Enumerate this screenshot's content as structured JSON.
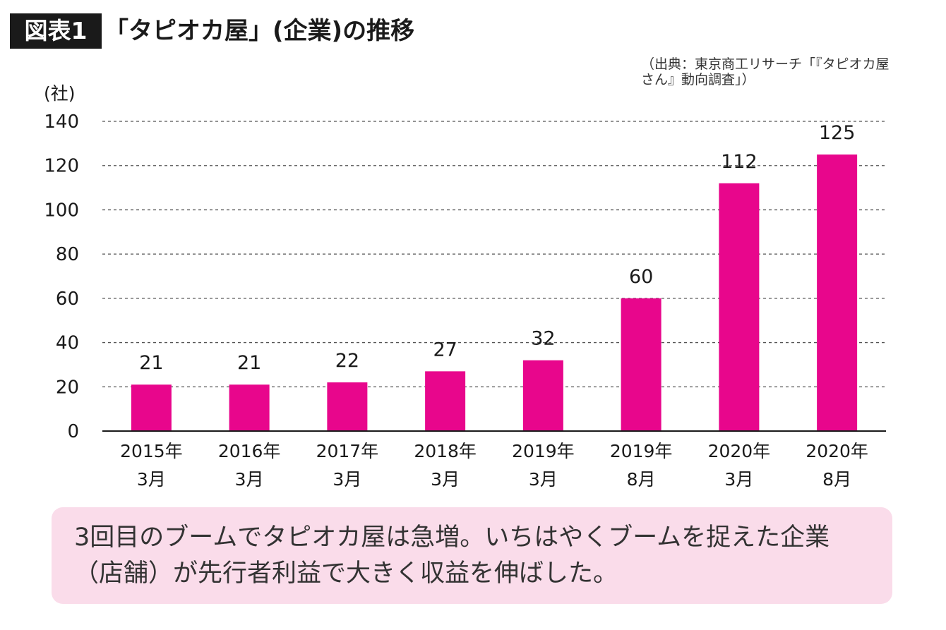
{
  "header": {
    "badge": "図表1",
    "title": "「タピオカ屋」(企業)の推移"
  },
  "source": "（出典：東京商工リサーチ「『タピオカ屋さん』動向調査」）",
  "colors": {
    "bar": "#e8068c",
    "note_bg": "#fadcea",
    "grid": "#555555"
  },
  "note": "3回目のブームでタピオカ屋は急増。いちはやくブームを捉えた企業（店舗）が先行者利益で大きく収益を伸ばした。",
  "chart_data": {
    "type": "bar",
    "title": "「タピオカ屋」(企業)の推移",
    "ylabel": "(社)",
    "xlabel": "",
    "ylim": [
      0,
      140
    ],
    "yticks": [
      0,
      20,
      40,
      60,
      80,
      100,
      120,
      140
    ],
    "grid": true,
    "categories": [
      [
        "2015年",
        "3月"
      ],
      [
        "2016年",
        "3月"
      ],
      [
        "2017年",
        "3月"
      ],
      [
        "2018年",
        "3月"
      ],
      [
        "2019年",
        "3月"
      ],
      [
        "2019年",
        "8月"
      ],
      [
        "2020年",
        "3月"
      ],
      [
        "2020年",
        "8月"
      ]
    ],
    "values": [
      21,
      21,
      22,
      27,
      32,
      60,
      112,
      125
    ]
  }
}
